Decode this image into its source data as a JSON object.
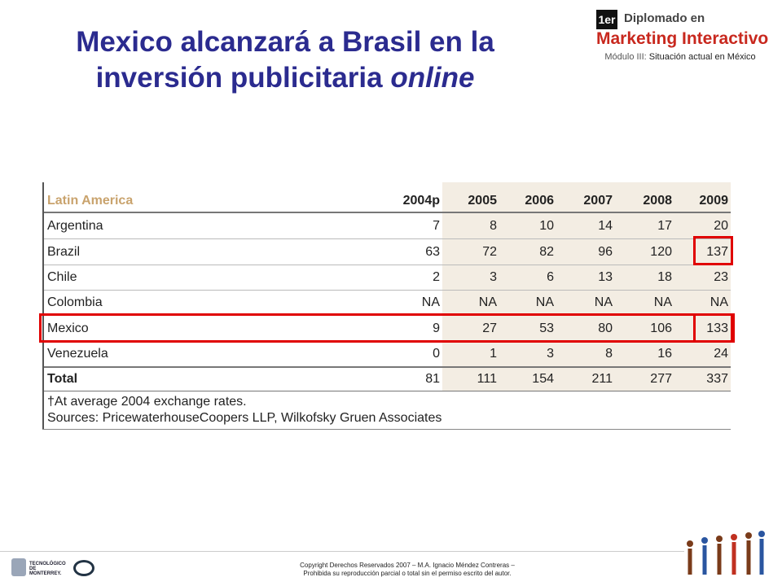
{
  "title": {
    "main": "Mexico alcanzará a Brasil en la inversión publicitaria",
    "italic": "online"
  },
  "logo": {
    "badge": "1er",
    "line1": "Diplomado en",
    "line2": "Marketing Interactivo",
    "module": "Módulo III:",
    "topic": "Situación actual en México"
  },
  "table": {
    "header": [
      "Latin America",
      "2004p",
      "2005",
      "2006",
      "2007",
      "2008",
      "2009"
    ],
    "rows": [
      [
        "Argentina",
        7,
        8,
        10,
        14,
        17,
        20
      ],
      [
        "Brazil",
        63,
        72,
        82,
        96,
        120,
        137
      ],
      [
        "Chile",
        2,
        3,
        6,
        13,
        18,
        23
      ],
      [
        "Colombia",
        "NA",
        "NA",
        "NA",
        "NA",
        "NA",
        "NA"
      ],
      [
        "Mexico",
        9,
        27,
        53,
        80,
        106,
        133
      ],
      [
        "Venezuela",
        0,
        1,
        3,
        8,
        16,
        24
      ],
      [
        "Total",
        81,
        111,
        154,
        211,
        277,
        337
      ]
    ],
    "footnotes": [
      "†At average 2004 exchange rates.",
      "Sources: PricewaterhouseCoopers LLP, Wilkofsky Gruen Associates"
    ]
  },
  "footer": {
    "copyright": [
      "Copyright Derechos Reservados 2007 – M.A. Ignacio Méndez Contreras –",
      "Prohibida su reproducción parcial o total sin el permiso escrito del autor."
    ],
    "tec": "TECNOLÓGICO DE MONTERREY."
  }
}
